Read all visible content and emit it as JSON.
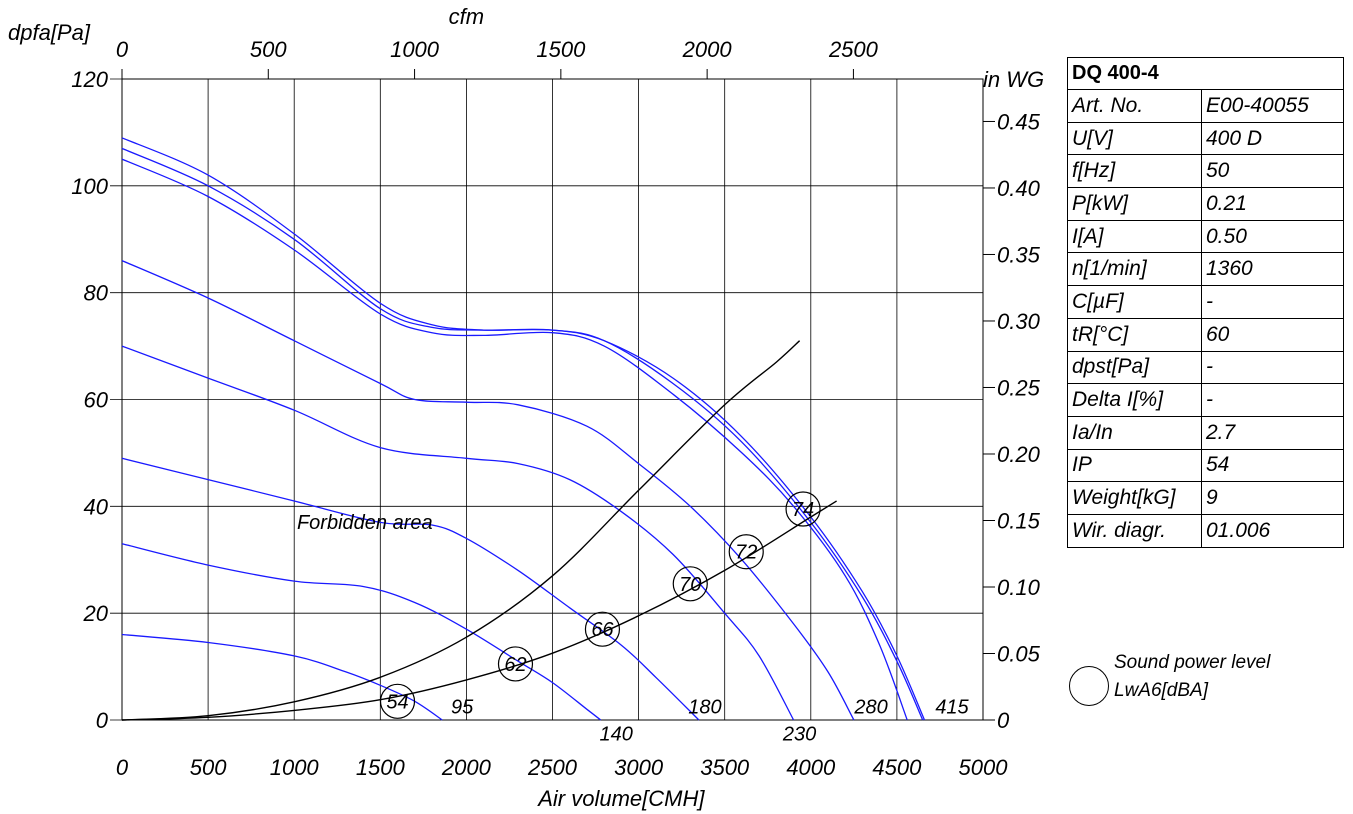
{
  "chart_data": {
    "type": "line",
    "x_axis": {
      "label": "Air volume[CMH]",
      "min": 0,
      "max": 5000,
      "ticks": [
        "0",
        "500",
        "1000",
        "1500",
        "2000",
        "2500",
        "3000",
        "3500",
        "4000",
        "4500",
        "5000"
      ]
    },
    "x2_axis": {
      "label": "cfm",
      "ticks": [
        "0",
        "500",
        "1000",
        "1500",
        "2000",
        "2500"
      ],
      "tick_values_cmh": [
        0,
        849.5,
        1699,
        2548.5,
        3398,
        4247.5
      ]
    },
    "y_axis": {
      "label": "dpfa[Pa]",
      "min": 0,
      "max": 120,
      "ticks": [
        "0",
        "20",
        "40",
        "60",
        "80",
        "100",
        "120"
      ]
    },
    "y2_axis": {
      "label": "in WG",
      "ticks": [
        "0",
        "0.05",
        "0.10",
        "0.15",
        "0.20",
        "0.25",
        "0.30",
        "0.35",
        "0.40",
        "0.45"
      ],
      "tick_values_pa": [
        0,
        12.45,
        24.9,
        37.35,
        49.8,
        62.25,
        74.7,
        87.15,
        99.6,
        112.05
      ]
    },
    "series": [
      {
        "color": "#1a1aff",
        "points": [
          [
            0,
            109
          ],
          [
            500,
            102
          ],
          [
            1000,
            91
          ],
          [
            1500,
            78
          ],
          [
            1800,
            74
          ],
          [
            2100,
            73
          ],
          [
            2500,
            73
          ],
          [
            2800,
            71
          ],
          [
            3200,
            64
          ],
          [
            3600,
            53
          ],
          [
            4000,
            38
          ],
          [
            4300,
            24
          ],
          [
            4500,
            12
          ],
          [
            4660,
            0
          ]
        ]
      },
      {
        "color": "#1a1aff",
        "points": [
          [
            0,
            107
          ],
          [
            500,
            100
          ],
          [
            1000,
            90
          ],
          [
            1500,
            77
          ],
          [
            1800,
            73.5
          ],
          [
            2100,
            73
          ],
          [
            2500,
            73
          ],
          [
            2800,
            71
          ],
          [
            3200,
            63
          ],
          [
            3600,
            52
          ],
          [
            4000,
            37
          ],
          [
            4300,
            23
          ],
          [
            4500,
            11
          ],
          [
            4650,
            0
          ]
        ]
      },
      {
        "color": "#1a1aff",
        "points": [
          [
            0,
            105
          ],
          [
            500,
            98
          ],
          [
            1000,
            88
          ],
          [
            1500,
            76
          ],
          [
            1800,
            72.5
          ],
          [
            2100,
            72
          ],
          [
            2500,
            72.5
          ],
          [
            2800,
            70
          ],
          [
            3200,
            61
          ],
          [
            3600,
            50
          ],
          [
            3900,
            40
          ],
          [
            4200,
            27
          ],
          [
            4400,
            14
          ],
          [
            4560,
            0
          ]
        ]
      },
      {
        "color": "#1a1aff",
        "points": [
          [
            0,
            86
          ],
          [
            500,
            79
          ],
          [
            1000,
            71
          ],
          [
            1500,
            63
          ],
          [
            1700,
            60
          ],
          [
            2000,
            59.5
          ],
          [
            2300,
            59
          ],
          [
            2700,
            55
          ],
          [
            3000,
            48
          ],
          [
            3300,
            40
          ],
          [
            3600,
            30
          ],
          [
            3900,
            18
          ],
          [
            4100,
            9
          ],
          [
            4250,
            0
          ]
        ]
      },
      {
        "color": "#1a1aff",
        "points": [
          [
            0,
            70
          ],
          [
            500,
            64
          ],
          [
            1000,
            58
          ],
          [
            1500,
            51
          ],
          [
            2000,
            49
          ],
          [
            2300,
            48
          ],
          [
            2600,
            45
          ],
          [
            2900,
            39
          ],
          [
            3200,
            31
          ],
          [
            3500,
            20
          ],
          [
            3700,
            12
          ],
          [
            3900,
            0
          ]
        ]
      },
      {
        "color": "#1a1aff",
        "points": [
          [
            0,
            49
          ],
          [
            500,
            45
          ],
          [
            1000,
            41
          ],
          [
            1500,
            37
          ],
          [
            1800,
            36.5
          ],
          [
            2000,
            34
          ],
          [
            2300,
            28
          ],
          [
            2600,
            21
          ],
          [
            2900,
            14
          ],
          [
            3100,
            8
          ],
          [
            3350,
            0
          ]
        ]
      },
      {
        "color": "#1a1aff",
        "points": [
          [
            0,
            33
          ],
          [
            500,
            29
          ],
          [
            1000,
            26
          ],
          [
            1400,
            25
          ],
          [
            1700,
            22
          ],
          [
            2000,
            17
          ],
          [
            2300,
            11
          ],
          [
            2500,
            7
          ],
          [
            2700,
            2
          ],
          [
            2780,
            0
          ]
        ]
      },
      {
        "color": "#1a1aff",
        "points": [
          [
            0,
            16
          ],
          [
            500,
            14.5
          ],
          [
            1000,
            12
          ],
          [
            1300,
            9
          ],
          [
            1500,
            6.5
          ],
          [
            1700,
            3.5
          ],
          [
            1860,
            0
          ]
        ]
      },
      {
        "color": "#000000",
        "points": [
          [
            0,
            0
          ],
          [
            500,
            0.8
          ],
          [
            1000,
            3.4
          ],
          [
            1500,
            8
          ],
          [
            2000,
            15.5
          ],
          [
            2500,
            27
          ],
          [
            3000,
            43
          ],
          [
            3500,
            59
          ],
          [
            3800,
            67
          ],
          [
            3935,
            71
          ]
        ]
      },
      {
        "color": "#000000",
        "points": [
          [
            0,
            0
          ],
          [
            500,
            0.5
          ],
          [
            1000,
            1.8
          ],
          [
            1500,
            3.8
          ],
          [
            2000,
            7.5
          ],
          [
            2500,
            12.5
          ],
          [
            3000,
            19.5
          ],
          [
            3500,
            28
          ],
          [
            4000,
            38
          ],
          [
            4150,
            41
          ]
        ]
      }
    ],
    "sound_markers": [
      {
        "label": "54",
        "x": 1600,
        "y": 3.5
      },
      {
        "label": "62",
        "x": 2285,
        "y": 10.5
      },
      {
        "label": "66",
        "x": 2790,
        "y": 17
      },
      {
        "label": "70",
        "x": 3300,
        "y": 25.5
      },
      {
        "label": "72",
        "x": 3625,
        "y": 31.5
      },
      {
        "label": "74",
        "x": 3955,
        "y": 39.5
      }
    ],
    "rpm_labels": [
      {
        "label": "95",
        "x": 1975,
        "y": 2.5
      },
      {
        "label": "140",
        "x": 2870,
        "y": -2.5
      },
      {
        "label": "180",
        "x": 3385,
        "y": 2.5
      },
      {
        "label": "230",
        "x": 3935,
        "y": -2.5
      },
      {
        "label": "280",
        "x": 4350,
        "y": 2.5
      },
      {
        "label": "415",
        "x": 4820,
        "y": 2.5
      }
    ],
    "annotation": {
      "text": "Forbidden area",
      "x": 1410,
      "y": 36.5
    }
  },
  "spec_table": {
    "title": "DQ 400-4",
    "rows": [
      {
        "k": "Art. No.",
        "v": "E00-40055"
      },
      {
        "k": "U[V]",
        "v": "400 D"
      },
      {
        "k": "f[Hz]",
        "v": "50"
      },
      {
        "k": "P[kW]",
        "v": "0.21"
      },
      {
        "k": "I[A]",
        "v": "0.50"
      },
      {
        "k": "n[1/min]",
        "v": "1360"
      },
      {
        "k": "C[µF]",
        "v": "-"
      },
      {
        "k": "tR[°C]",
        "v": "60"
      },
      {
        "k": "dpst[Pa]",
        "v": "-"
      },
      {
        "k": "Delta I[%]",
        "v": "-"
      },
      {
        "k": "Ia/In",
        "v": "2.7"
      },
      {
        "k": "IP",
        "v": "54"
      },
      {
        "k": "Weight[kG]",
        "v": "9"
      },
      {
        "k": "Wir. diagr.",
        "v": "01.006"
      }
    ]
  },
  "legend": {
    "line1": "Sound power level",
    "line2": "LwA6[dBA]"
  }
}
